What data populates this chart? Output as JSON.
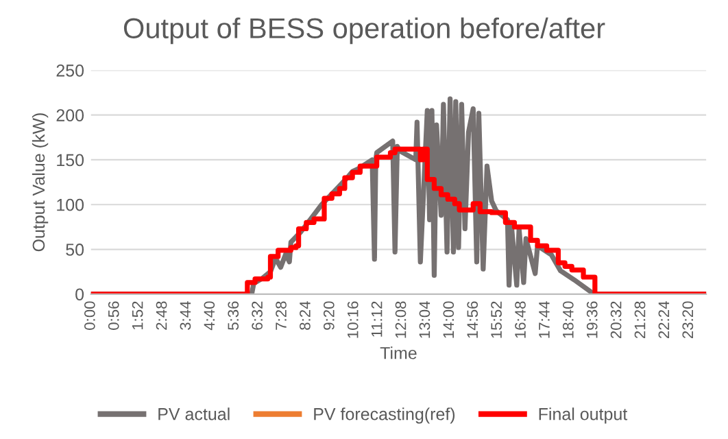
{
  "chart_data": {
    "type": "line",
    "title": "Output of BESS operation before/after",
    "xlabel": "Time",
    "ylabel": "Output Value (kW)",
    "xlim": [
      0,
      24
    ],
    "ylim": [
      0,
      250
    ],
    "yticks": [
      0,
      50,
      100,
      150,
      200,
      250
    ],
    "xticks": [
      {
        "value": 0,
        "label": "0:00"
      },
      {
        "value": 0.9333,
        "label": "0:56"
      },
      {
        "value": 1.8667,
        "label": "1:52"
      },
      {
        "value": 2.8,
        "label": "2:48"
      },
      {
        "value": 3.7333,
        "label": "3:44"
      },
      {
        "value": 4.6667,
        "label": "4:40"
      },
      {
        "value": 5.6,
        "label": "5:36"
      },
      {
        "value": 6.5333,
        "label": "6:32"
      },
      {
        "value": 7.4667,
        "label": "7:28"
      },
      {
        "value": 8.4,
        "label": "8:24"
      },
      {
        "value": 9.3333,
        "label": "9:20"
      },
      {
        "value": 10.2667,
        "label": "10:16"
      },
      {
        "value": 11.2,
        "label": "11:12"
      },
      {
        "value": 12.1333,
        "label": "12:08"
      },
      {
        "value": 13.0667,
        "label": "13:04"
      },
      {
        "value": 14,
        "label": "14:00"
      },
      {
        "value": 14.9333,
        "label": "14:56"
      },
      {
        "value": 15.8667,
        "label": "15:52"
      },
      {
        "value": 16.8,
        "label": "16:48"
      },
      {
        "value": 17.7333,
        "label": "17:44"
      },
      {
        "value": 18.6667,
        "label": "18:40"
      },
      {
        "value": 19.6,
        "label": "19:36"
      },
      {
        "value": 20.5333,
        "label": "20:32"
      },
      {
        "value": 21.4667,
        "label": "21:28"
      },
      {
        "value": 22.4,
        "label": "22:24"
      },
      {
        "value": 23.3333,
        "label": "23:20"
      }
    ],
    "grid": "y",
    "legend": "bottom",
    "marker": "none",
    "series": [
      {
        "name": "PV actual",
        "color": "#767171",
        "x": [
          0,
          6.27,
          6.35,
          6.7,
          7.0,
          7.2,
          7.4,
          7.6,
          7.74,
          7.8,
          8.2,
          8.6,
          9.0,
          9.5,
          10.0,
          10.2,
          10.43,
          10.97,
          11.06,
          11.11,
          11.15,
          11.77,
          11.86,
          11.95,
          12.04,
          12.67,
          12.72,
          12.85,
          13.12,
          13.21,
          13.3,
          13.39,
          13.48,
          13.66,
          13.75,
          13.89,
          14.01,
          14.14,
          14.23,
          14.34,
          14.46,
          14.59,
          14.73,
          14.91,
          15.05,
          15.13,
          15.3,
          15.45,
          15.63,
          15.81,
          16.25,
          16.31,
          16.4,
          16.61,
          16.7,
          16.88,
          16.97,
          17.33,
          17.42,
          17.96,
          18.32,
          18.85,
          19.48,
          19.57,
          24
        ],
        "values": [
          0,
          0,
          12,
          18,
          25,
          40,
          30,
          45,
          36,
          58,
          70,
          85,
          100,
          115,
          130,
          137,
          140,
          150,
          39,
          150,
          158,
          171,
          47,
          165,
          160,
          150,
          192,
          36,
          205,
          83,
          205,
          21,
          189,
          88,
          212,
          47,
          218,
          47,
          215,
          52,
          212,
          73,
          181,
          207,
          36,
          202,
          28,
          143,
          104,
          93,
          83,
          10,
          78,
          10,
          73,
          13,
          62,
          23,
          54,
          44,
          26,
          16,
          3,
          0,
          0
        ]
      },
      {
        "name": "PV forecasting(ref)",
        "color": "#ed7d31",
        "type": "line"
      },
      {
        "name": "Final output",
        "color": "#ff0000",
        "type": "step",
        "x": [
          0,
          6.1,
          6.4,
          6.9,
          7.0,
          7.3,
          7.8,
          8.0,
          8.1,
          8.4,
          8.7,
          9.1,
          9.4,
          9.7,
          9.9,
          10.2,
          10.5,
          11.15,
          11.68,
          11.86,
          12.85,
          12.95,
          13.12,
          13.39,
          13.66,
          13.92,
          14.19,
          14.37,
          14.91,
          15.18,
          15.63,
          16.17,
          16.52,
          17.15,
          17.42,
          17.78,
          18.23,
          18.49,
          18.76,
          19.21,
          19.66,
          24
        ],
        "values": [
          0,
          13,
          17,
          19,
          42,
          49,
          52,
          54,
          73,
          80,
          84,
          107,
          112,
          118,
          130,
          136,
          143,
          153,
          158,
          162,
          150,
          162,
          128,
          118,
          111,
          106,
          101,
          94,
          101,
          92,
          91,
          80,
          75,
          60,
          54,
          49,
          35,
          31,
          27,
          19,
          0,
          0
        ]
      }
    ]
  }
}
